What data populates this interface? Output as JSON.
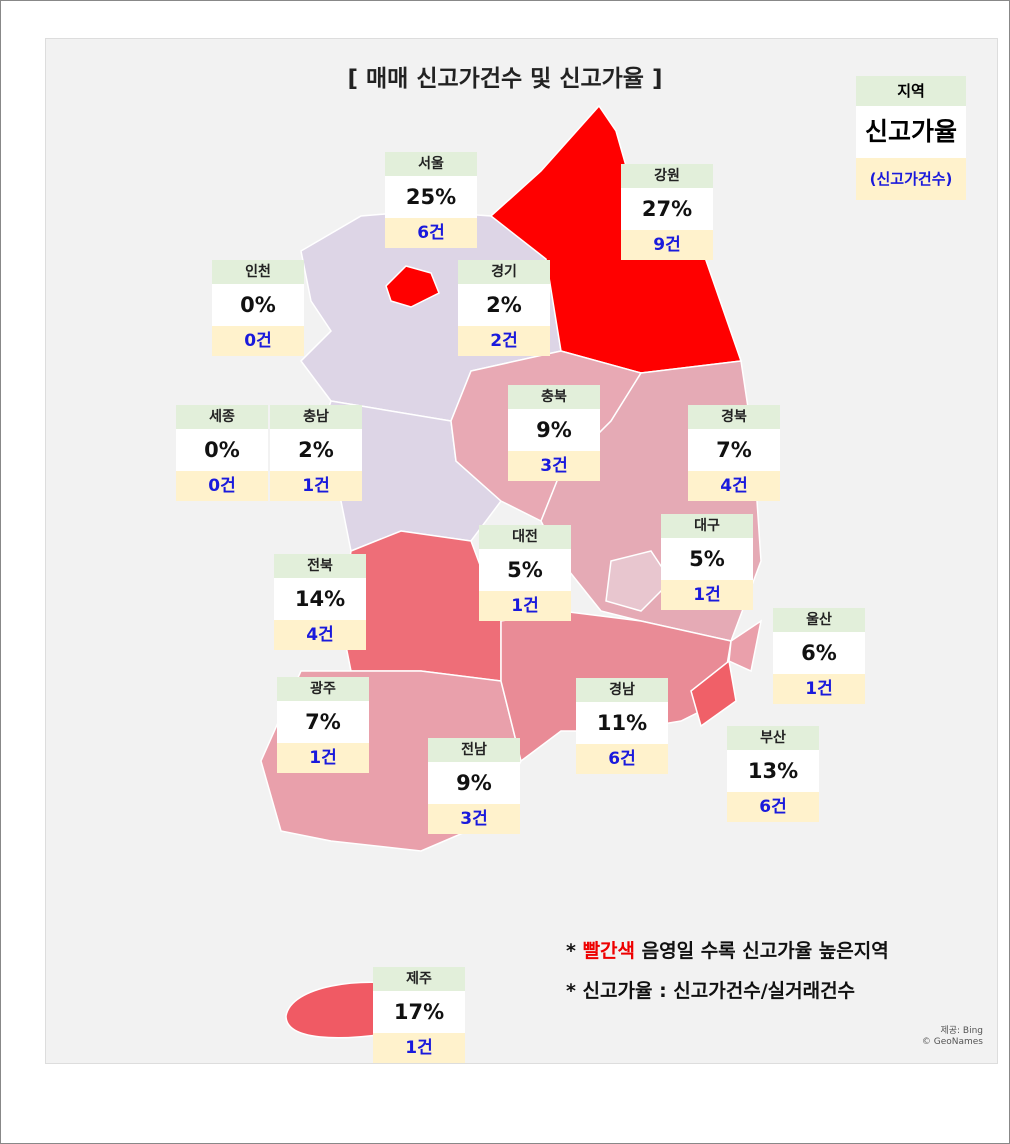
{
  "title": "[ 매매 신고가건수 및 신고가율 ]",
  "legend": {
    "region": "지역",
    "rate": "신고가율",
    "count": "(신고가건수)"
  },
  "regions": [
    {
      "name": "서울",
      "rate": "25%",
      "count": "6건"
    },
    {
      "name": "강원",
      "rate": "27%",
      "count": "9건"
    },
    {
      "name": "인천",
      "rate": "0%",
      "count": "0건"
    },
    {
      "name": "경기",
      "rate": "2%",
      "count": "2건"
    },
    {
      "name": "충북",
      "rate": "9%",
      "count": "3건"
    },
    {
      "name": "경북",
      "rate": "7%",
      "count": "4건"
    },
    {
      "name": "세종",
      "rate": "0%",
      "count": "0건"
    },
    {
      "name": "충남",
      "rate": "2%",
      "count": "1건"
    },
    {
      "name": "대전",
      "rate": "5%",
      "count": "1건"
    },
    {
      "name": "대구",
      "rate": "5%",
      "count": "1건"
    },
    {
      "name": "전북",
      "rate": "14%",
      "count": "4건"
    },
    {
      "name": "울산",
      "rate": "6%",
      "count": "1건"
    },
    {
      "name": "광주",
      "rate": "7%",
      "count": "1건"
    },
    {
      "name": "경남",
      "rate": "11%",
      "count": "6건"
    },
    {
      "name": "부산",
      "rate": "13%",
      "count": "6건"
    },
    {
      "name": "전남",
      "rate": "9%",
      "count": "3건"
    },
    {
      "name": "제주",
      "rate": "17%",
      "count": "1건"
    }
  ],
  "notes": [
    {
      "prefix": "*",
      "highlight": "빨간색",
      "text": "음영일 수록 신고가율 높은지역"
    },
    {
      "text": "* 신고가율 : 신고가건수/실거래건수"
    }
  ],
  "credit": [
    "제공: Bing",
    "© GeoNames"
  ]
}
